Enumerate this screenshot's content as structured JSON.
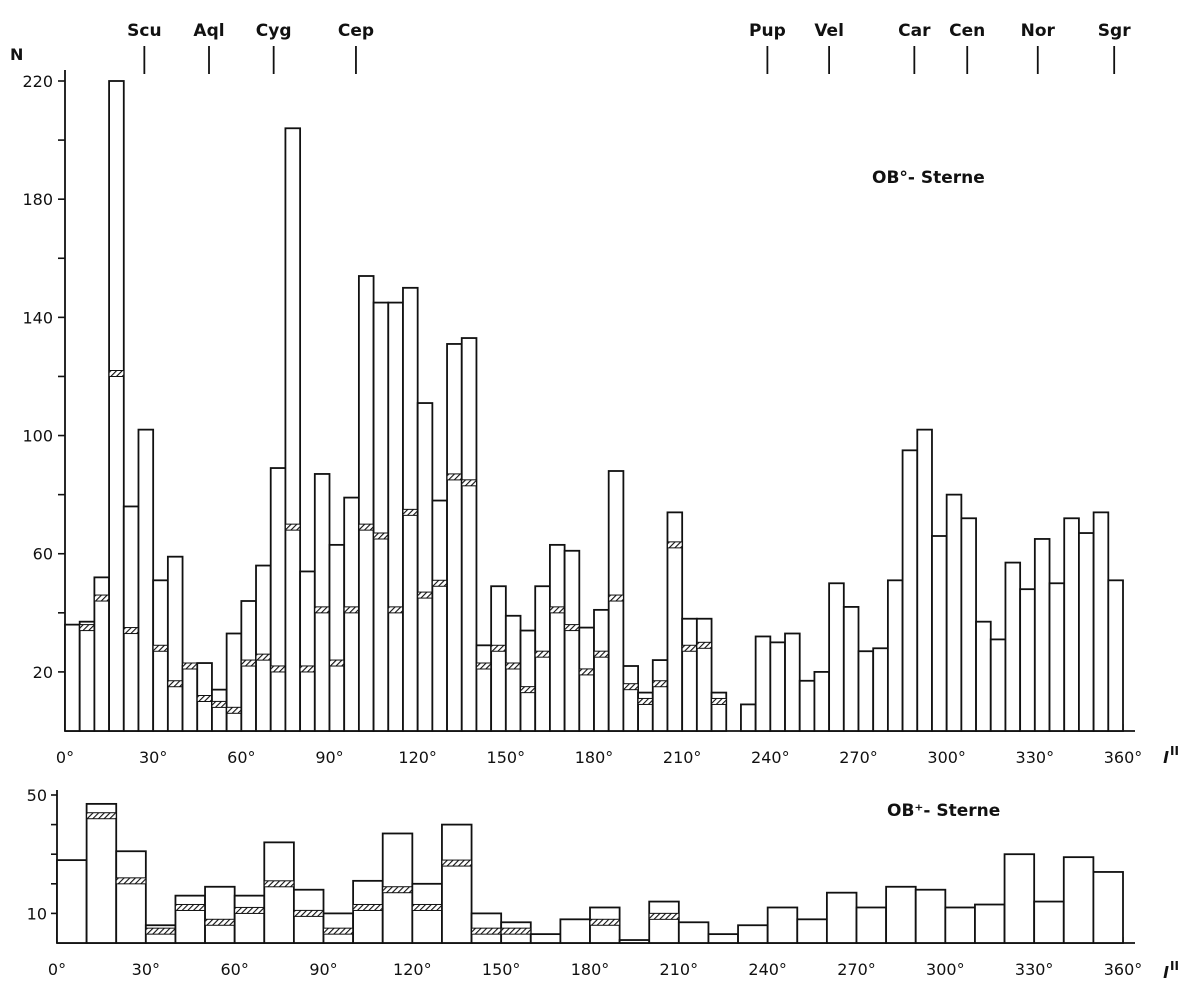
{
  "chart_data": [
    {
      "type": "bar",
      "title": "OB°- Sterne",
      "ylabel": "N",
      "xlabel": "l",
      "xlabel_sup": "II",
      "xlim": [
        0,
        360
      ],
      "ylim": [
        0,
        220
      ],
      "yticks": [
        20,
        60,
        100,
        140,
        180,
        220
      ],
      "ytick_labels": [
        "20",
        "60",
        "100",
        "140",
        "180",
        "220"
      ],
      "xticks": [
        0,
        30,
        60,
        90,
        120,
        150,
        180,
        210,
        240,
        270,
        300,
        330,
        360
      ],
      "xtick_labels": [
        "0°",
        "30°",
        "60°",
        "90°",
        "120°",
        "150°",
        "180°",
        "210°",
        "240°",
        "270°",
        "300°",
        "330°",
        "360°"
      ],
      "bin_width": 5,
      "bin_starts": [
        0,
        5,
        10,
        15,
        20,
        25,
        30,
        35,
        40,
        45,
        50,
        55,
        60,
        65,
        70,
        75,
        80,
        85,
        90,
        95,
        100,
        105,
        110,
        115,
        120,
        125,
        130,
        135,
        140,
        145,
        150,
        155,
        160,
        165,
        170,
        175,
        180,
        185,
        190,
        195,
        200,
        205,
        210,
        215,
        220,
        225,
        230,
        235,
        240,
        245,
        250,
        255,
        260,
        265,
        270,
        275,
        280,
        285,
        290,
        295,
        300,
        305,
        310,
        315,
        320,
        325,
        330,
        335,
        340,
        345,
        350,
        355
      ],
      "series": [
        {
          "values": [
            36,
            37,
            52,
            220,
            76,
            102,
            51,
            59,
            22,
            23,
            14,
            33,
            44,
            56,
            89,
            204,
            54,
            87,
            63,
            79,
            154,
            145,
            145,
            150,
            111,
            78,
            131,
            133,
            29,
            49,
            39,
            34,
            49,
            63,
            61,
            35,
            41,
            88,
            22,
            13,
            24,
            74,
            38,
            38,
            13,
            0,
            9,
            32,
            30,
            33,
            17,
            20,
            50,
            42,
            27,
            28,
            51,
            95,
            102,
            66,
            80,
            72,
            37,
            31,
            57,
            48,
            65,
            50,
            72,
            67,
            74,
            51
          ]
        },
        {
          "values": [
            0,
            35,
            45,
            121,
            34,
            0,
            28,
            16,
            22,
            11,
            9,
            7,
            23,
            25,
            21,
            69,
            21,
            41,
            23,
            41,
            69,
            66,
            41,
            74,
            46,
            50,
            86,
            84,
            22,
            28,
            22,
            14,
            26,
            41,
            35,
            20,
            26,
            45,
            15,
            10,
            16,
            63,
            28,
            29,
            10,
            0,
            0,
            0,
            0,
            0,
            0,
            0,
            0,
            0,
            0,
            0,
            0,
            0,
            0,
            0,
            0,
            0,
            0,
            0,
            0,
            0,
            0,
            0,
            0,
            0,
            0,
            0
          ]
        }
      ],
      "constellations": [
        {
          "name": "Scu",
          "l": 27
        },
        {
          "name": "Aql",
          "l": 49
        },
        {
          "name": "Cyg",
          "l": 71
        },
        {
          "name": "Cep",
          "l": 99
        },
        {
          "name": "Pup",
          "l": 239
        },
        {
          "name": "Vel",
          "l": 260
        },
        {
          "name": "Car",
          "l": 289
        },
        {
          "name": "Cen",
          "l": 307
        },
        {
          "name": "Nor",
          "l": 331
        },
        {
          "name": "Sgr",
          "l": 357
        }
      ]
    },
    {
      "type": "bar",
      "title": "OB⁺- Sterne",
      "xlabel": "l",
      "xlabel_sup": "II",
      "xlim": [
        0,
        360
      ],
      "ylim": [
        0,
        50
      ],
      "yticks": [
        10,
        50
      ],
      "ytick_labels": [
        "10",
        "50"
      ],
      "xticks": [
        0,
        30,
        60,
        90,
        120,
        150,
        180,
        210,
        240,
        270,
        300,
        330,
        360
      ],
      "xtick_labels": [
        "0°",
        "30°",
        "60°",
        "90°",
        "120°",
        "150°",
        "180°",
        "210°",
        "240°",
        "270°",
        "300°",
        "330°",
        "360°"
      ],
      "bin_width": 10,
      "bin_starts": [
        0,
        10,
        20,
        30,
        40,
        50,
        60,
        70,
        80,
        90,
        100,
        110,
        120,
        130,
        140,
        150,
        160,
        170,
        180,
        190,
        200,
        210,
        220,
        230,
        240,
        250,
        260,
        270,
        280,
        290,
        300,
        310,
        320,
        330,
        340,
        350
      ],
      "series": [
        {
          "values": [
            28,
            47,
            31,
            6,
            16,
            19,
            16,
            34,
            18,
            10,
            21,
            37,
            20,
            40,
            10,
            7,
            3,
            8,
            12,
            1,
            14,
            7,
            3,
            6,
            12,
            8,
            17,
            12,
            19,
            18,
            12,
            13,
            30,
            14,
            29,
            24
          ]
        },
        {
          "values": [
            0,
            43,
            21,
            4,
            12,
            7,
            11,
            20,
            10,
            4,
            12,
            18,
            12,
            27,
            4,
            4,
            0,
            0,
            7,
            0,
            9,
            0,
            0,
            0,
            0,
            0,
            0,
            0,
            0,
            0,
            0,
            0,
            0,
            0,
            0,
            0
          ]
        }
      ]
    }
  ]
}
